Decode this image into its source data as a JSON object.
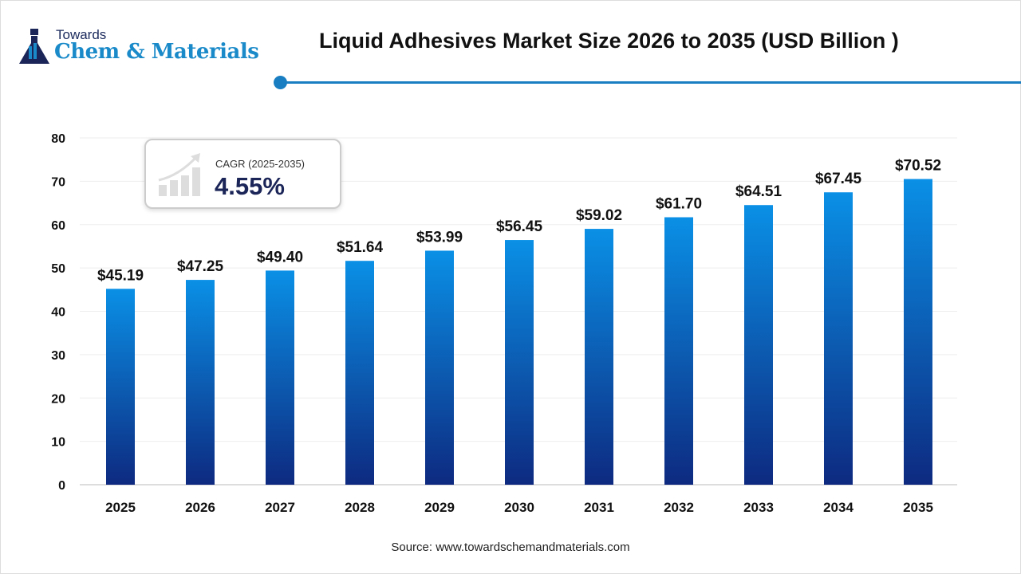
{
  "logo": {
    "line1": "Towards",
    "line2": "Chem & Materials"
  },
  "header": {
    "title": "Liquid Adhesives Market Size 2026 to 2035 (USD Billion )"
  },
  "cagr": {
    "label": "CAGR (2025-2035)",
    "value": "4.55%"
  },
  "source": "Source: www.towardschemandmaterials.com",
  "colors": {
    "bar_top": "#0a90e6",
    "bar_bottom": "#0d2a80",
    "accent": "#1a7fc2"
  },
  "chart_data": {
    "type": "bar",
    "title": "Liquid Adhesives Market Size 2026 to 2035 (USD Billion )",
    "categories": [
      "2025",
      "2026",
      "2027",
      "2028",
      "2029",
      "2030",
      "2031",
      "2032",
      "2033",
      "2034",
      "2035"
    ],
    "values": [
      45.19,
      47.25,
      49.4,
      51.64,
      53.99,
      56.45,
      59.02,
      61.7,
      64.51,
      67.45,
      70.52
    ],
    "data_labels": [
      "$45.19",
      "$47.25",
      "$49.40",
      "$51.64",
      "$53.99",
      "$56.45",
      "$59.02",
      "$61.70",
      "$64.51",
      "$67.45",
      "$70.52"
    ],
    "yticks": [
      "0",
      "10",
      "20",
      "30",
      "40",
      "50",
      "60",
      "70",
      "80"
    ],
    "ylim": [
      0,
      80
    ],
    "grid": true,
    "xlabel": "",
    "ylabel": ""
  }
}
